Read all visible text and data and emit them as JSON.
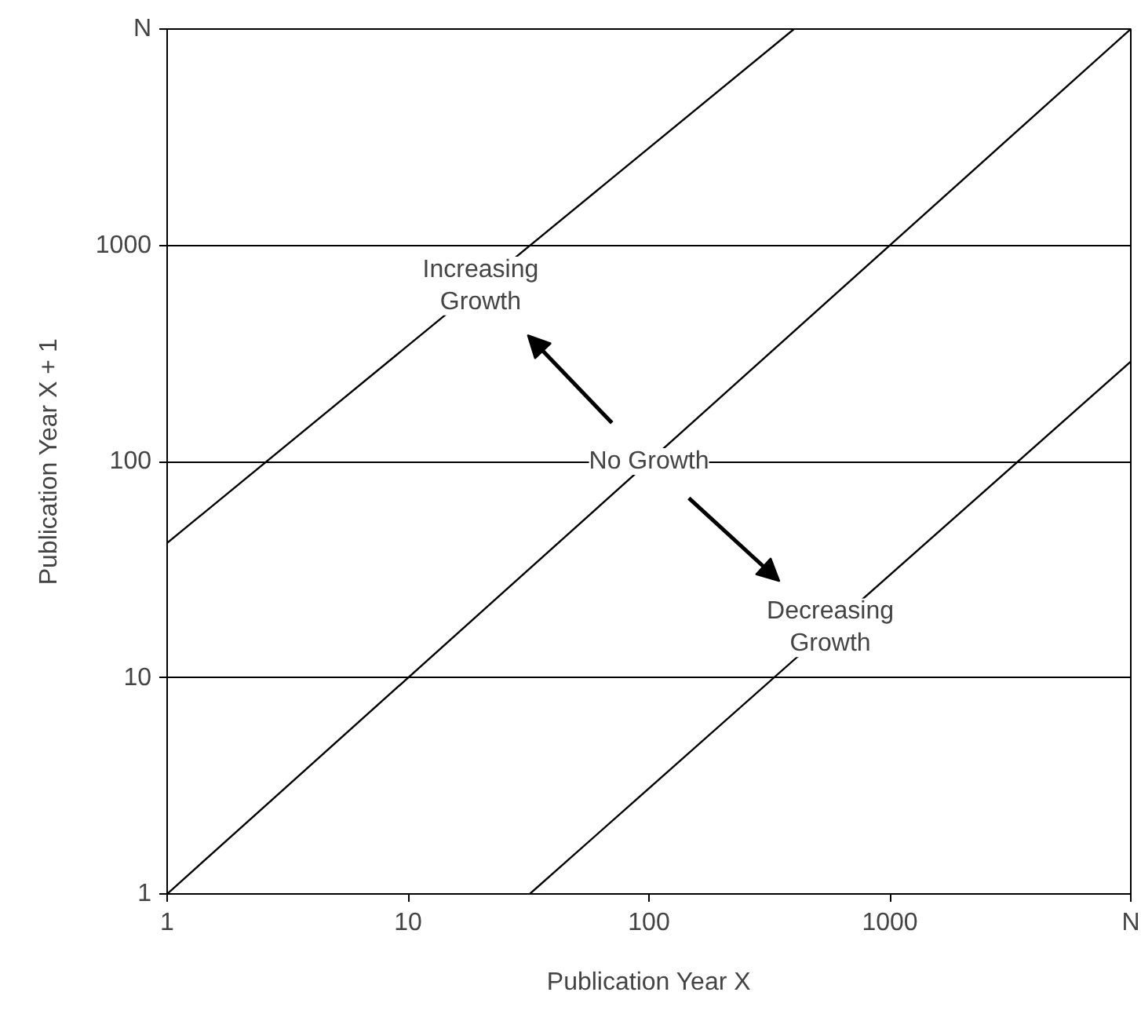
{
  "chart_data": {
    "type": "line",
    "xlabel": "Publication Year X",
    "ylabel": "Publication Year X + 1",
    "log": "xy",
    "grid": "y",
    "xlim": [
      1,
      10000
    ],
    "ylim": [
      1,
      10000
    ],
    "xticks": [
      1,
      10,
      100,
      1000,
      {
        "value": 10000,
        "label": "N"
      }
    ],
    "yticks": [
      1,
      10,
      100,
      1000,
      {
        "value": 10000,
        "label": "N"
      }
    ],
    "series": [
      {
        "color": "#000000",
        "x": [
          1,
          400
        ],
        "values": [
          42,
          10000
        ]
      },
      {
        "color": "#000000",
        "x": [
          1,
          10000
        ],
        "values": [
          1,
          10000
        ]
      },
      {
        "color": "#000000",
        "x": [
          32,
          10000
        ],
        "values": [
          1,
          290
        ]
      }
    ],
    "annotations": [
      "Increasing\nGrowth",
      "No Growth",
      "Decreasing\nGrowth"
    ]
  }
}
